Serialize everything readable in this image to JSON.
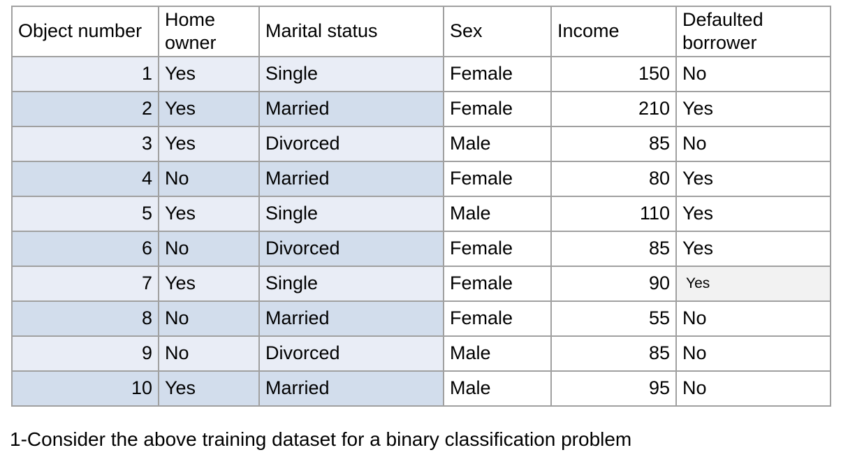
{
  "caption": "1-Consider the above training dataset for a binary classification problem",
  "table": {
    "columns": [
      {
        "key": "object_number",
        "label": "Object number",
        "align": "right"
      },
      {
        "key": "home_owner",
        "label": "Home owner",
        "align": "left"
      },
      {
        "key": "marital_status",
        "label": "Marital status",
        "align": "left"
      },
      {
        "key": "sex",
        "label": "Sex",
        "align": "left"
      },
      {
        "key": "income",
        "label": "Income",
        "align": "right"
      },
      {
        "key": "defaulted_borrower",
        "label": "Defaulted borrower",
        "align": "left"
      }
    ],
    "rows": [
      [
        1,
        "Yes",
        "Single",
        "Female",
        150,
        "No"
      ],
      [
        2,
        "Yes",
        "Married",
        "Female",
        210,
        "Yes"
      ],
      [
        3,
        "Yes",
        "Divorced",
        "Male",
        85,
        "No"
      ],
      [
        4,
        "No",
        "Married",
        "Female",
        80,
        "Yes"
      ],
      [
        5,
        "Yes",
        "Single",
        "Male",
        110,
        "Yes"
      ],
      [
        6,
        "No",
        "Divorced",
        "Female",
        85,
        "Yes"
      ],
      [
        7,
        "Yes",
        "Single",
        "Female",
        90,
        "Yes"
      ],
      [
        8,
        "No",
        "Married",
        "Female",
        55,
        "No"
      ],
      [
        9,
        "No",
        "Divorced",
        "Male",
        85,
        "No"
      ],
      [
        10,
        "Yes",
        "Married",
        "Male",
        95,
        "No"
      ]
    ],
    "highlight_cell": {
      "row_index": 6,
      "col_index": 5
    },
    "shaded_column_count": 3,
    "colors": {
      "row_light": "#e9edf6",
      "row_dark": "#d2ddec",
      "highlight_bg": "#f2f2f2",
      "header_bg": "#ffffff",
      "border": "#a0a0a0"
    }
  }
}
